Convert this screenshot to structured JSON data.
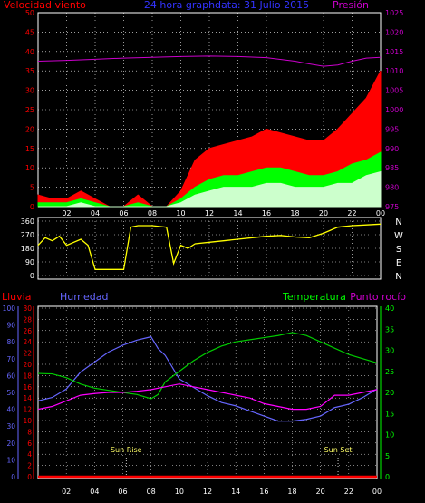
{
  "chart_data": [
    {
      "type": "line",
      "title": "24 hora graphdata:  31 Julio 2015",
      "ylabel_left": "Velocidad viento",
      "ylabel_right": "Presión",
      "ylim_left": [
        0,
        50
      ],
      "ylim_right": [
        975,
        1025
      ],
      "yticks_left": [
        "0",
        "5",
        "10",
        "15",
        "20",
        "25",
        "30",
        "35",
        "40",
        "45",
        "50"
      ],
      "yticks_right": [
        "975",
        "980",
        "985",
        "990",
        "995",
        "1000",
        "1005",
        "1010",
        "1015",
        "1020",
        "1025"
      ],
      "xlim": [
        0,
        24
      ],
      "xticks": [
        "02",
        "04",
        "06",
        "08",
        "10",
        "12",
        "14",
        "16",
        "18",
        "20",
        "22",
        "00"
      ],
      "grid": true,
      "colors": {
        "gust": "#ff0000",
        "speed": "#00ff00",
        "avg": "#ccffcc",
        "pressure": "#cc00cc",
        "axis_left": "#ff0000",
        "axis_right": "#cc00cc"
      },
      "series": [
        {
          "key": "gust",
          "x": [
            0,
            1,
            2,
            3,
            4,
            5,
            6,
            7,
            8,
            9,
            10,
            11,
            12,
            13,
            14,
            15,
            16,
            17,
            18,
            19,
            20,
            21,
            22,
            23,
            24
          ],
          "values": [
            3,
            2,
            2,
            4,
            2,
            0,
            0,
            3,
            0,
            0,
            4,
            12,
            15,
            16,
            17,
            18,
            20,
            19,
            18,
            17,
            17,
            20,
            24,
            28,
            35
          ]
        },
        {
          "key": "speed",
          "x": [
            0,
            1,
            2,
            3,
            4,
            5,
            6,
            7,
            8,
            9,
            10,
            11,
            12,
            13,
            14,
            15,
            16,
            17,
            18,
            19,
            20,
            21,
            22,
            23,
            24
          ],
          "values": [
            1,
            1,
            1,
            2,
            1,
            0,
            0,
            1,
            0,
            0,
            2,
            5,
            7,
            8,
            8,
            9,
            10,
            10,
            9,
            8,
            8,
            9,
            11,
            12,
            14
          ]
        },
        {
          "key": "avg",
          "x": [
            0,
            1,
            2,
            3,
            4,
            5,
            6,
            7,
            8,
            9,
            10,
            11,
            12,
            13,
            14,
            15,
            16,
            17,
            18,
            19,
            20,
            21,
            22,
            23,
            24
          ],
          "values": [
            0,
            0,
            0,
            1,
            0,
            0,
            0,
            0,
            0,
            0,
            1,
            3,
            4,
            5,
            5,
            5,
            6,
            6,
            5,
            5,
            5,
            6,
            6,
            8,
            9
          ]
        },
        {
          "key": "pressure",
          "x": [
            0,
            2,
            4,
            6,
            8,
            10,
            12,
            14,
            16,
            18,
            19,
            20,
            21,
            22,
            23,
            24
          ],
          "values": [
            1012.5,
            1012.7,
            1013.0,
            1013.3,
            1013.5,
            1013.7,
            1013.8,
            1013.7,
            1013.4,
            1012.5,
            1011.8,
            1011.2,
            1011.5,
            1012.5,
            1013.3,
            1013.5
          ]
        }
      ]
    },
    {
      "type": "line",
      "title": "",
      "ylim": [
        0,
        360
      ],
      "yticks": [
        "0",
        "90",
        "180",
        "270",
        "360"
      ],
      "right_labels": [
        "N",
        "W",
        "S",
        "E",
        "N"
      ],
      "xlim": [
        0,
        24
      ],
      "colors": {
        "direction": "#ffff00",
        "axis": "#ffffff"
      },
      "series": [
        {
          "key": "direction",
          "x": [
            0,
            0.5,
            1,
            1.5,
            2,
            3,
            3.5,
            4,
            5,
            6,
            6.5,
            7,
            8,
            9,
            9.5,
            10,
            10.5,
            11,
            12,
            13,
            14,
            15,
            16,
            17,
            18,
            19,
            20,
            21,
            22,
            23,
            24
          ],
          "values": [
            200,
            250,
            230,
            260,
            200,
            240,
            200,
            40,
            40,
            40,
            320,
            330,
            330,
            320,
            80,
            200,
            180,
            210,
            220,
            230,
            240,
            250,
            260,
            265,
            255,
            250,
            280,
            320,
            330,
            335,
            340
          ]
        }
      ]
    },
    {
      "type": "line",
      "title": "",
      "labels": {
        "rain": "Lluvia",
        "humidity": "Humedad",
        "temperature": "Temperatura",
        "dewpoint": "Punto rocío"
      },
      "ylim_humidity": [
        0,
        100
      ],
      "ylim_temp_left": [
        0,
        30
      ],
      "ylim_temp_right": [
        0,
        40
      ],
      "yticks_humidity": [
        "0",
        "10",
        "20",
        "30",
        "40",
        "50",
        "60",
        "70",
        "80",
        "90",
        "100"
      ],
      "yticks_temp_left": [
        "0",
        "2",
        "4",
        "6",
        "8",
        "10",
        "12",
        "14",
        "16",
        "18",
        "20",
        "22",
        "24",
        "26",
        "28",
        "30"
      ],
      "yticks_temp_right": [
        "0",
        "5",
        "10",
        "15",
        "20",
        "25",
        "30",
        "35",
        "40"
      ],
      "xlim": [
        0,
        24
      ],
      "xticks": [
        "02",
        "04",
        "06",
        "08",
        "10",
        "12",
        "14",
        "16",
        "18",
        "20",
        "22",
        "00"
      ],
      "annotations": [
        {
          "text": "Sun Rise",
          "x": 6.5
        },
        {
          "text": "Sun Set",
          "x": 21.5
        }
      ],
      "colors": {
        "humidity": "#6666ff",
        "temperature": "#00cc00",
        "dewpoint": "#ff00ff",
        "rain": "#ff0000",
        "temp_axis": "#ff0000",
        "hum_axis": "#6666ff",
        "right_axis": "#00ff00"
      },
      "series": [
        {
          "key": "humidity",
          "x": [
            0,
            1,
            2,
            3,
            4,
            5,
            6,
            7,
            8,
            8.5,
            9,
            10,
            11,
            12,
            13,
            14,
            15,
            16,
            17,
            18,
            19,
            20,
            21,
            22,
            23,
            24
          ],
          "values": [
            45,
            47,
            52,
            62,
            68,
            74,
            78,
            81,
            83,
            76,
            72,
            58,
            53,
            48,
            44,
            42,
            39,
            36,
            33,
            33,
            34,
            36,
            41,
            43,
            47,
            52
          ]
        },
        {
          "key": "temperature",
          "x": [
            0,
            1,
            2,
            3,
            4,
            5,
            6,
            7,
            8,
            8.5,
            9,
            10,
            11,
            12,
            13,
            14,
            15,
            16,
            17,
            18,
            19,
            20,
            21,
            22,
            23,
            24
          ],
          "values": [
            24.5,
            24.4,
            23.5,
            22,
            21,
            20.5,
            20,
            19.5,
            18.5,
            19.5,
            22.5,
            25,
            27.5,
            29.5,
            31,
            32,
            32.5,
            33,
            33.5,
            34.2,
            33.5,
            32,
            30.5,
            29,
            28,
            27
          ]
        },
        {
          "key": "dewpoint",
          "x": [
            0,
            1,
            2,
            3,
            4,
            5,
            6,
            7,
            8,
            9,
            10,
            11,
            12,
            13,
            14,
            15,
            16,
            17,
            18,
            19,
            20,
            21,
            22,
            23,
            24
          ],
          "values": [
            12,
            12.5,
            13.5,
            14.5,
            14.8,
            15,
            15,
            15.2,
            15.5,
            16,
            16.5,
            16,
            15.5,
            15,
            14.5,
            14,
            13,
            12.5,
            12,
            12,
            12.5,
            14.5,
            14.5,
            15,
            15.5
          ]
        },
        {
          "key": "rain",
          "x": [
            0,
            24
          ],
          "values": [
            0,
            0
          ]
        }
      ]
    }
  ]
}
